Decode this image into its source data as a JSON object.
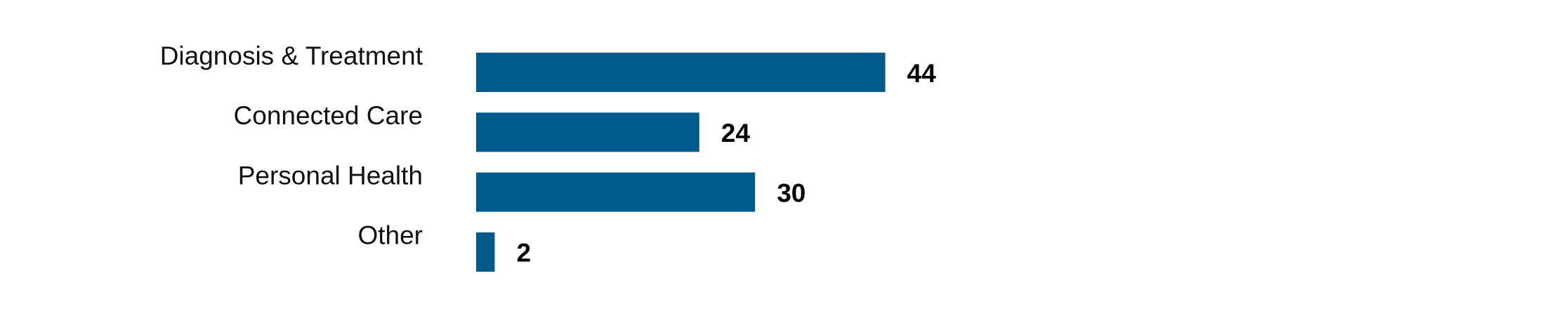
{
  "chart_data": {
    "type": "bar",
    "orientation": "horizontal",
    "categories": [
      "Diagnosis & Treatment",
      "Connected Care",
      "Personal Health",
      "Other"
    ],
    "values": [
      44,
      24,
      30,
      2
    ],
    "color": "#005a8c"
  }
}
